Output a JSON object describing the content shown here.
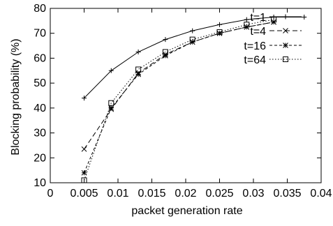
{
  "chart_data": {
    "type": "line",
    "title": "",
    "xlabel": "packet generation rate",
    "ylabel": "Blocking probability (%)",
    "xlim": [
      0,
      0.04
    ],
    "ylim": [
      10,
      80
    ],
    "x_ticks": [
      "0",
      "0.005",
      "0.01",
      "0.015",
      "0.02",
      "0.025",
      "0.03",
      "0.035",
      "0.04"
    ],
    "y_ticks": [
      "10",
      "20",
      "30",
      "40",
      "50",
      "60",
      "70",
      "80"
    ],
    "legend_position": "top-right",
    "grid": false,
    "series": [
      {
        "name": "t=1",
        "line_style": "solid",
        "marker": "plus",
        "x": [
          0.005,
          0.009,
          0.013,
          0.017,
          0.021,
          0.025,
          0.029,
          0.033,
          0.0375
        ],
        "y": [
          44,
          55,
          62.5,
          67.5,
          71,
          73.5,
          75.5,
          76.5,
          76.5
        ]
      },
      {
        "name": "t=4",
        "line_style": "dashed",
        "marker": "x",
        "x": [
          0.005,
          0.009,
          0.013,
          0.017,
          0.021,
          0.025,
          0.029,
          0.033
        ],
        "y": [
          23.5,
          39.5,
          54,
          61.5,
          66.5,
          70,
          72.5,
          74.5
        ]
      },
      {
        "name": "t=16",
        "line_style": "short-dashed",
        "marker": "asterisk",
        "x": [
          0.005,
          0.009,
          0.013,
          0.017,
          0.021,
          0.025,
          0.029,
          0.033
        ],
        "y": [
          14,
          40,
          53.5,
          61,
          66.5,
          70,
          72.5,
          74.5
        ]
      },
      {
        "name": "t=64",
        "line_style": "dotted",
        "marker": "square",
        "x": [
          0.005,
          0.009,
          0.013,
          0.017,
          0.021,
          0.025,
          0.029,
          0.033
        ],
        "y": [
          11,
          42,
          55.5,
          62.5,
          67.5,
          70.5,
          73.5,
          75.5
        ]
      }
    ]
  }
}
